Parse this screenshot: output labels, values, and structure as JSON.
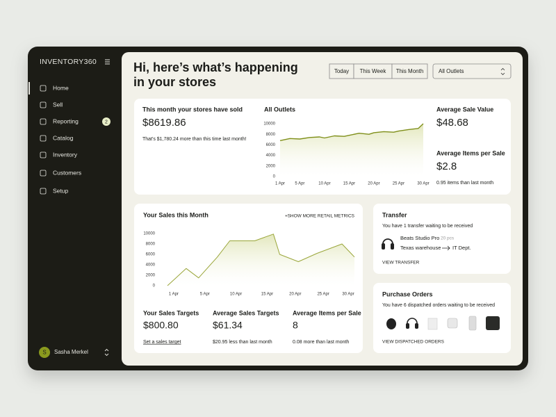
{
  "sidebar": {
    "brand": "INVENTORY360",
    "nav": [
      {
        "label": "Home"
      },
      {
        "label": "Sell"
      },
      {
        "label": "Reporting",
        "badge": 2
      },
      {
        "label": "Catalog"
      },
      {
        "label": "Inventory"
      },
      {
        "label": "Customers"
      },
      {
        "label": "Setup"
      }
    ],
    "user": {
      "initial": "S",
      "name": "Sasha Merkel"
    }
  },
  "header": {
    "title_lines": [
      "Hi, here’s what’s happening",
      "in your stores"
    ],
    "filters": [
      "Today",
      "This Week",
      "This Month"
    ],
    "outlet_select": "All Outlets"
  },
  "summary": {
    "title": "This month your stores have sold",
    "value": "$8619.86",
    "note": "That's $1,780.24 more than this time last month!"
  },
  "side_stats": [
    {
      "label": "Average Sale Value",
      "value": "$48.68"
    },
    {
      "label": "Average Items per Sale",
      "value": "$2.8",
      "note": "0.95 items than last month"
    }
  ],
  "chart_data": [
    {
      "type": "line",
      "title": "All Outlets",
      "color": "#7f8f1a",
      "x": [
        1,
        3,
        5,
        7,
        9,
        10,
        12,
        14,
        15,
        17,
        19,
        20,
        22,
        24,
        25,
        27,
        29,
        30
      ],
      "values": [
        6800,
        7200,
        7100,
        7400,
        7500,
        7300,
        7700,
        7600,
        7800,
        8200,
        8000,
        8300,
        8500,
        8400,
        8600,
        8900,
        9100,
        10000
      ],
      "xlim": [
        1,
        30
      ],
      "ylim": [
        0,
        10000
      ],
      "xticks": [
        {
          "value": 1,
          "label": "1 Apr"
        },
        {
          "value": 5,
          "label": "5 Apr"
        },
        {
          "value": 10,
          "label": "10 Apr"
        },
        {
          "value": 15,
          "label": "15 Apr"
        },
        {
          "value": 20,
          "label": "20 Apr"
        },
        {
          "value": 25,
          "label": "25 Apr"
        },
        {
          "value": 30,
          "label": "30 Apr"
        }
      ],
      "yticks": [
        0,
        2000,
        4000,
        6000,
        8000,
        10000
      ]
    },
    {
      "type": "line",
      "title": "Your Sales this Month",
      "action": "SHOW MORE RETAIL METRICS",
      "color": "#9aa63a",
      "x": [
        1,
        4,
        6,
        9,
        11,
        15,
        18,
        19,
        22,
        25,
        29,
        31
      ],
      "values": [
        0,
        3300,
        1500,
        5500,
        8600,
        8600,
        9900,
        6000,
        4600,
        6200,
        8000,
        5500
      ],
      "xlim": [
        0,
        31
      ],
      "ylim": [
        0,
        10000
      ],
      "xticks": [
        {
          "value": 2,
          "label": "1 Apr"
        },
        {
          "value": 7,
          "label": "5 Apr"
        },
        {
          "value": 12,
          "label": "10 Apr"
        },
        {
          "value": 17,
          "label": "15 Apr"
        },
        {
          "value": 21.5,
          "label": "20 Apr"
        },
        {
          "value": 26,
          "label": "25 Apr"
        },
        {
          "value": 30,
          "label": "30 Apr"
        }
      ],
      "yticks": [
        0,
        2000,
        4000,
        6000,
        8000,
        10000
      ]
    }
  ],
  "sales_stats": [
    {
      "label": "Your Sales Targets",
      "value": "$800.80",
      "note": "Set a sales target"
    },
    {
      "label": "Average Sales Targets",
      "value": "$61.34",
      "note": "$20.95 less than last month"
    },
    {
      "label": "Average Items per Sale",
      "value": "8",
      "note": "0.08 more than last month"
    }
  ],
  "transfer": {
    "title": "Transfer",
    "subtitle": "You have 1 transfer waiting to be received",
    "product": "Beats Studio Pro",
    "quantity": "20 pcs",
    "from": "Texas warehouse",
    "to": "IT Dept.",
    "link": "VIEW TRANSFER"
  },
  "purchase_orders": {
    "title": "Purchase Orders",
    "subtitle": "You have 6 dispatched orders waiting to be received",
    "link": "VIEW DISPATCHED ORDERS"
  }
}
